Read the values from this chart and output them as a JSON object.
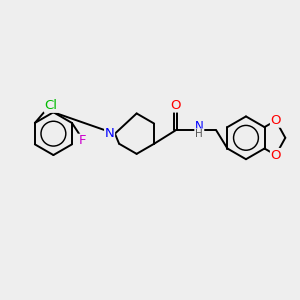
{
  "bg_color": "#eeeeee",
  "bond_color": "#000000",
  "atom_colors": {
    "Cl": "#00bb00",
    "F": "#cc00cc",
    "N": "#0000ff",
    "O": "#ff0000",
    "H": "#555555"
  },
  "font_size": 8.5,
  "line_width": 1.4
}
